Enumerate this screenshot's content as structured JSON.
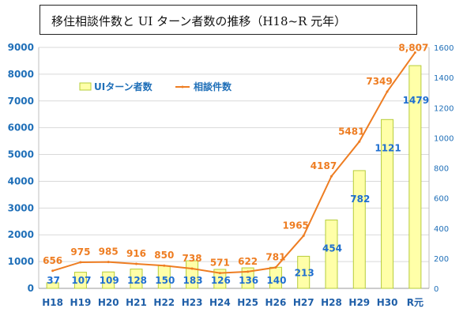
{
  "title": "移住相談件数と UI ターン者数の推移（H18~R 元年）",
  "chart_data": {
    "type": "bar+line",
    "categories": [
      "H18",
      "H19",
      "H20",
      "H21",
      "H22",
      "H23",
      "H24",
      "H25",
      "H26",
      "H27",
      "H28",
      "H29",
      "H30",
      "R元"
    ],
    "series": [
      {
        "name": "UIターン者数",
        "type": "bar",
        "axis": "right",
        "values": [
          37,
          107,
          109,
          128,
          150,
          183,
          126,
          136,
          140,
          213,
          454,
          782,
          1121,
          1479
        ],
        "labels": [
          "37",
          "107",
          "109",
          "128",
          "150",
          "183",
          "126",
          "136",
          "140",
          "213",
          "454",
          "782",
          "1121",
          "1479"
        ]
      },
      {
        "name": "相談件数",
        "type": "line",
        "axis": "left",
        "values": [
          656,
          975,
          985,
          916,
          850,
          738,
          571,
          622,
          781,
          1965,
          4187,
          5481,
          7349,
          8807
        ],
        "labels": [
          "656",
          "975",
          "985",
          "916",
          "850",
          "738",
          "571",
          "622",
          "781",
          "1965",
          "4187",
          "5481",
          "7349",
          "8,807"
        ]
      }
    ],
    "y_left": {
      "range": [
        0,
        9000
      ],
      "ticks": [
        "0",
        "1000",
        "2000",
        "3000",
        "4000",
        "5000",
        "6000",
        "7000",
        "8000",
        "9000"
      ]
    },
    "y_right": {
      "range": [
        0,
        1600
      ],
      "ticks": [
        "0",
        "200",
        "400",
        "600",
        "800",
        "1000",
        "1200",
        "1400",
        "1600"
      ]
    },
    "grid": "horizontal",
    "legend": "top-left",
    "colors": {
      "bar_fill": "#ffffa8",
      "bar_stroke": "#b6cc3a",
      "line": "#ee7d22",
      "axis_text": "#1f6fb8",
      "grid": "#d9d9d9"
    }
  }
}
